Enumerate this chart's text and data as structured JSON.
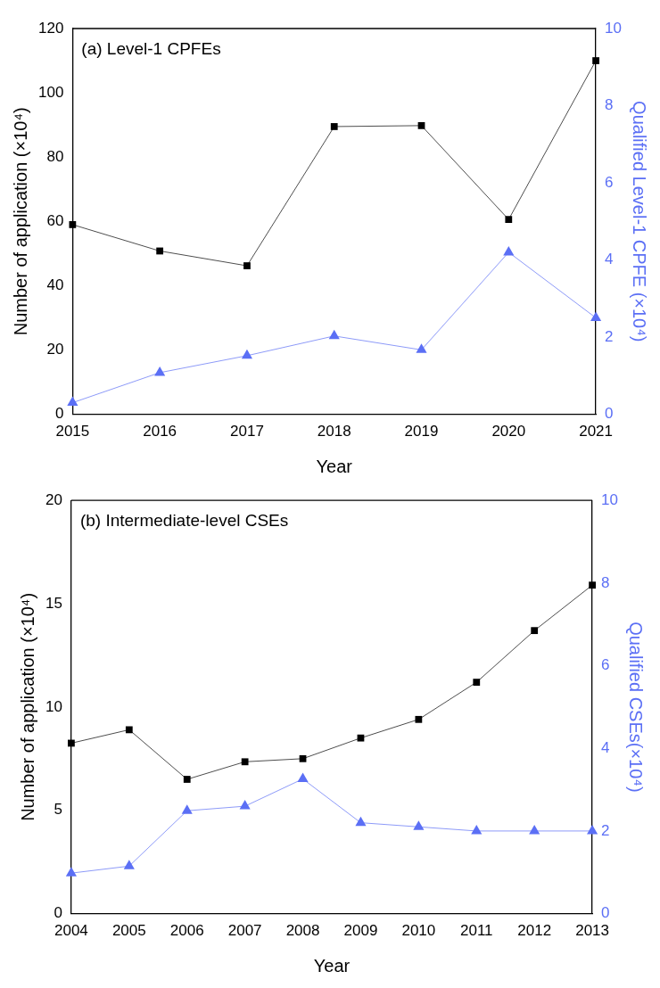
{
  "chart_data": [
    {
      "type": "line",
      "title": "(a) Level-1 CPFEs",
      "xlabel": "Year",
      "ylabel": "Number of application (×10⁴)",
      "y2label": "Qualified Level-1 CPFE (×10⁴)",
      "categories": [
        "2015",
        "2016",
        "2017",
        "2018",
        "2019",
        "2020",
        "2021"
      ],
      "series": [
        {
          "color": "#000000",
          "marker": "square",
          "values": [
            59,
            50.8,
            46.2,
            89.5,
            89.8,
            60.6,
            110
          ]
        },
        {
          "color": "#5b6ff5",
          "marker": "triangle",
          "axis": "y2",
          "values": [
            0.3,
            1.08,
            1.52,
            2.03,
            1.67,
            4.2,
            2.5
          ]
        }
      ],
      "ylim": [
        0,
        120
      ],
      "yticks": [
        0,
        20,
        40,
        60,
        80,
        100,
        120
      ],
      "y2lim": [
        0,
        10
      ],
      "y2ticks": [
        0,
        2,
        4,
        6,
        8,
        10
      ],
      "grid": false,
      "legend": false
    },
    {
      "type": "line",
      "title": "(b) Intermediate-level CSEs",
      "xlabel": "Year",
      "ylabel": "Number of application (×10⁴)",
      "y2label": "Qualified CSEs(×10⁴)",
      "categories": [
        "2004",
        "2005",
        "2006",
        "2007",
        "2008",
        "2009",
        "2010",
        "2011",
        "2012",
        "2013"
      ],
      "series": [
        {
          "color": "#000000",
          "marker": "square",
          "values": [
            8.25,
            8.9,
            6.5,
            7.35,
            7.5,
            8.5,
            9.4,
            11.2,
            13.7,
            15.9
          ]
        },
        {
          "color": "#5b6ff5",
          "marker": "triangle",
          "axis": "y2",
          "values": [
            0.98,
            1.15,
            2.49,
            2.6,
            3.26,
            2.2,
            2.1,
            2.0,
            2.0,
            2.0
          ]
        }
      ],
      "ylim": [
        0,
        20
      ],
      "yticks": [
        0,
        5,
        10,
        15,
        20
      ],
      "y2lim": [
        0,
        10
      ],
      "y2ticks": [
        0,
        2,
        4,
        6,
        8,
        10
      ],
      "grid": false,
      "legend": false
    }
  ]
}
